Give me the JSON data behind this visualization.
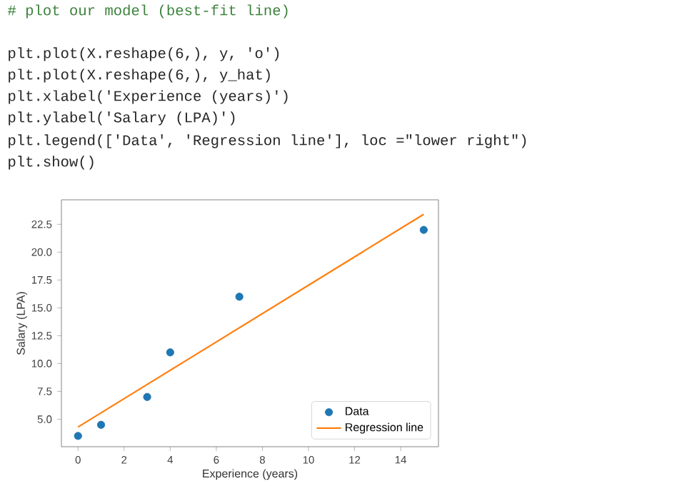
{
  "chart_data": {
    "type": "scatter",
    "xlabel": "Experience (years)",
    "ylabel": "Salary (LPA)",
    "x": [
      0,
      1,
      3,
      4,
      7,
      15
    ],
    "series": [
      {
        "name": "Data",
        "color": "#1f77b4",
        "marker": "circle",
        "values": [
          3.5,
          4.5,
          7,
          11,
          16,
          22
        ]
      },
      {
        "name": "Regression line",
        "type": "line",
        "color": "#ff7f0e",
        "marker": "none",
        "x": [
          0,
          15
        ],
        "values": [
          4.3,
          23.4
        ]
      }
    ],
    "xlim": [
      -0.72,
      15.64
    ],
    "ylim": [
      2.53,
      24.7
    ],
    "xticks": [
      0,
      2,
      4,
      6,
      8,
      10,
      12,
      14
    ],
    "yticks": [
      {
        "value": 5,
        "label": "5.0"
      },
      {
        "value": 7.5,
        "label": "7.5"
      },
      {
        "value": 10,
        "label": "10.0"
      },
      {
        "value": 12.5,
        "label": "12.5"
      },
      {
        "value": 15,
        "label": "15.0"
      },
      {
        "value": 17.5,
        "label": "17.5"
      },
      {
        "value": 20,
        "label": "20.0"
      },
      {
        "value": 22.5,
        "label": "22.5"
      }
    ],
    "grid": false,
    "legend": "bottom right",
    "annotations": [
      "# plot our model (best-fit line)",
      "plt.plot(X.reshape(6,), y, 'o')",
      "plt.plot(X.reshape(6,), y_hat)",
      "plt.xlabel('Experience (years)')",
      "plt.ylabel('Salary (LPA)')",
      "plt.legend(['Data', 'Regression line'], loc =\"lower right\")",
      "plt.show()"
    ]
  }
}
